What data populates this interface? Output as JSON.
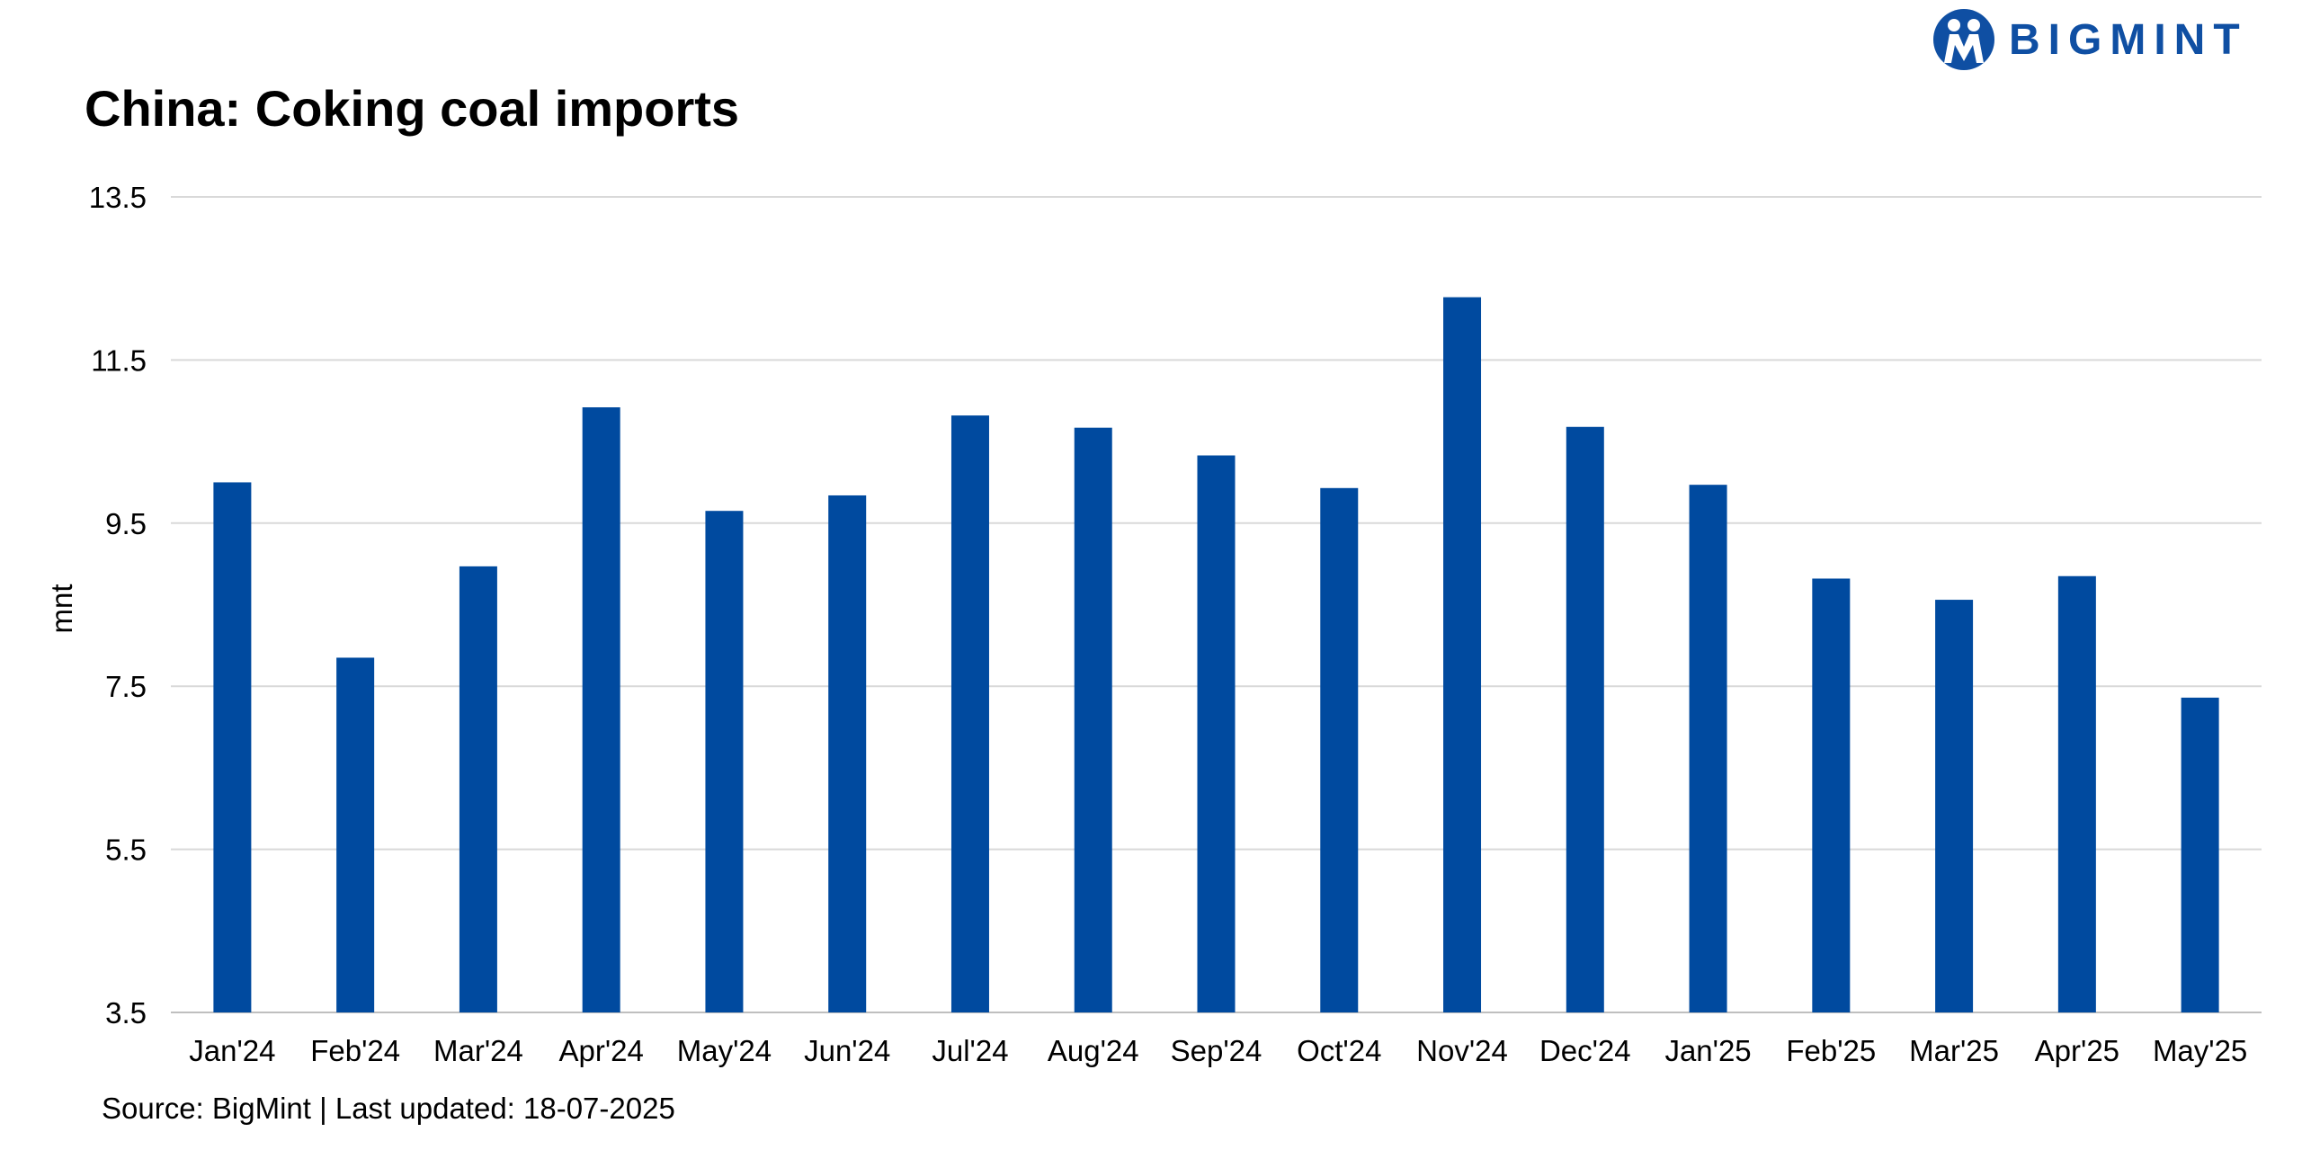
{
  "brand": {
    "name": "BIGMINT",
    "color": "#0f4fa3"
  },
  "footer": {
    "source": "Source: BigMint | Last updated: 18-07-2025"
  },
  "chart_data": {
    "type": "bar",
    "title": "China: Coking coal imports",
    "xlabel": "",
    "ylabel": "mnt",
    "ylim": [
      3.5,
      13.5
    ],
    "yticks": [
      "3.5",
      "5.5",
      "7.5",
      "9.5",
      "11.5",
      "13.5"
    ],
    "grid": true,
    "bar_color": "#004a9f",
    "categories": [
      "Jan'24",
      "Feb'24",
      "Mar'24",
      "Apr'24",
      "May'24",
      "Jun'24",
      "Jul'24",
      "Aug'24",
      "Sep'24",
      "Oct'24",
      "Nov'24",
      "Dec'24",
      "Jan'25",
      "Feb'25",
      "Mar'25",
      "Apr'25",
      "May'25"
    ],
    "values": [
      10.0,
      7.85,
      8.97,
      10.92,
      9.65,
      9.84,
      10.82,
      10.67,
      10.33,
      9.93,
      12.27,
      10.68,
      9.97,
      8.82,
      8.56,
      8.85,
      7.36
    ]
  }
}
